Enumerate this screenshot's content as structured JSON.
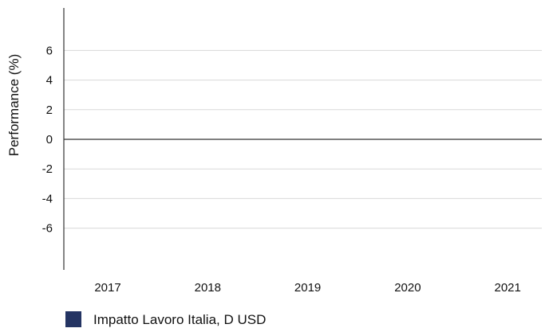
{
  "chart_data": {
    "type": "bar",
    "title": "",
    "xlabel": "",
    "ylabel": "Performance (%)",
    "categories": [
      "2017",
      "2018",
      "2019",
      "2020",
      "2021"
    ],
    "y_ticks": [
      "6",
      "4",
      "2",
      "0",
      "-2",
      "-4",
      "-6"
    ],
    "ylim": [
      -6,
      6
    ],
    "grid": true,
    "legend_position": "bottom-left",
    "series": [
      {
        "name": "Impatto Lavoro Italia,  D USD",
        "values": [
          null,
          null,
          null,
          null,
          null
        ],
        "color": "#243463"
      }
    ]
  },
  "colors": {
    "gridline": "#d8d8d8",
    "zero_line": "#333333",
    "axis": "#333333"
  }
}
